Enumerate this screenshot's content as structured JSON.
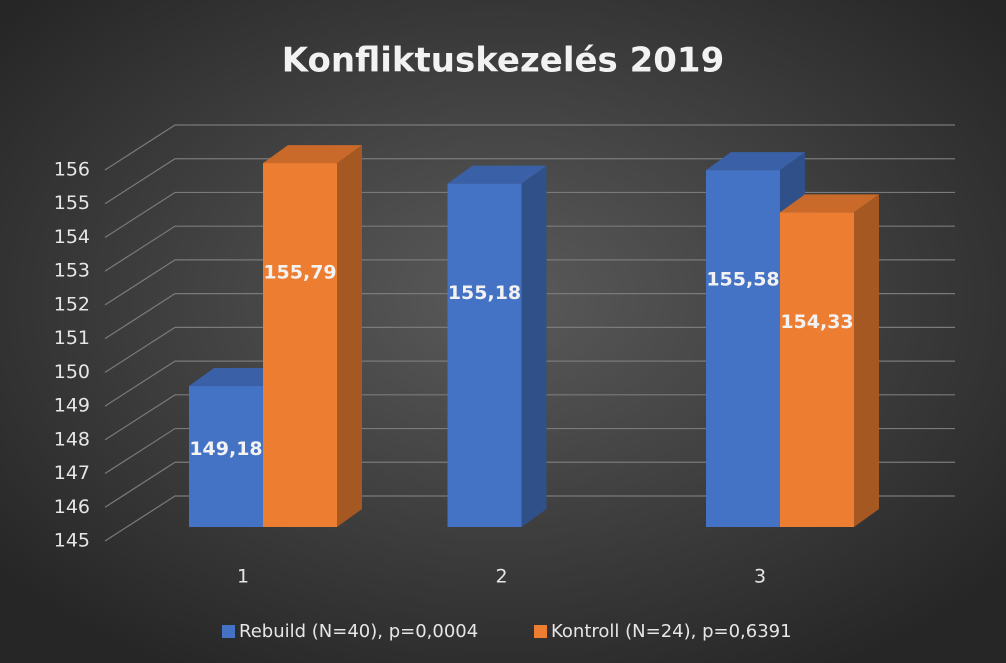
{
  "chart_data": {
    "type": "bar3d",
    "title": "Konfliktuskezelés 2019",
    "categories": [
      "1",
      "2",
      "3"
    ],
    "series": [
      {
        "name": "Rebuild (N=40), p=0,0004",
        "color": "#4472c4",
        "values": [
          149.18,
          155.18,
          155.58
        ],
        "value_labels": [
          "149,18",
          "155,18",
          "155,58"
        ]
      },
      {
        "name": "Kontroll (N=24), p=0,6391",
        "color": "#ed7d31",
        "values": [
          155.79,
          null,
          154.33
        ],
        "value_labels": [
          "155,79",
          null,
          "154,33"
        ]
      }
    ],
    "ylim": [
      145,
      156
    ],
    "yticks": [
      145,
      146,
      147,
      148,
      149,
      150,
      151,
      152,
      153,
      154,
      155,
      156
    ],
    "grid": true,
    "legend": "bottom"
  }
}
